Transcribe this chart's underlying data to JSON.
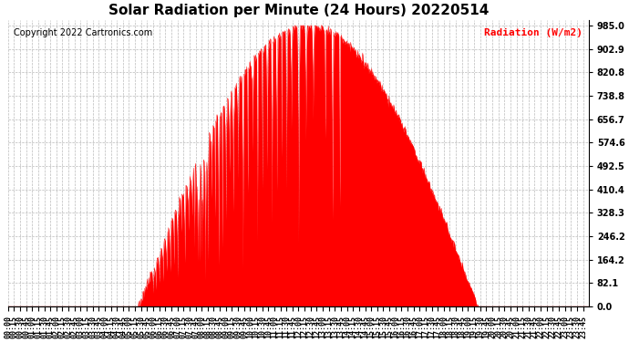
{
  "title": "Solar Radiation per Minute (24 Hours) 20220514",
  "copyright": "Copyright 2022 Cartronics.com",
  "ylabel_right": "Radiation (W/m2)",
  "ylabel_color": "red",
  "background_color": "#ffffff",
  "plot_bg_color": "#ffffff",
  "line_color": "red",
  "fill_color": "red",
  "dashed_line_color": "red",
  "ytick_labels": [
    0.0,
    82.1,
    164.2,
    246.2,
    328.3,
    410.4,
    492.5,
    574.6,
    656.7,
    738.8,
    820.8,
    902.9,
    985.0
  ],
  "ymax": 985.0,
  "ymin": 0.0,
  "grid_color": "#bbbbbb",
  "grid_style": "--",
  "title_fontsize": 11,
  "label_fontsize": 7,
  "tick_fontsize": 6,
  "copyright_fontsize": 7
}
